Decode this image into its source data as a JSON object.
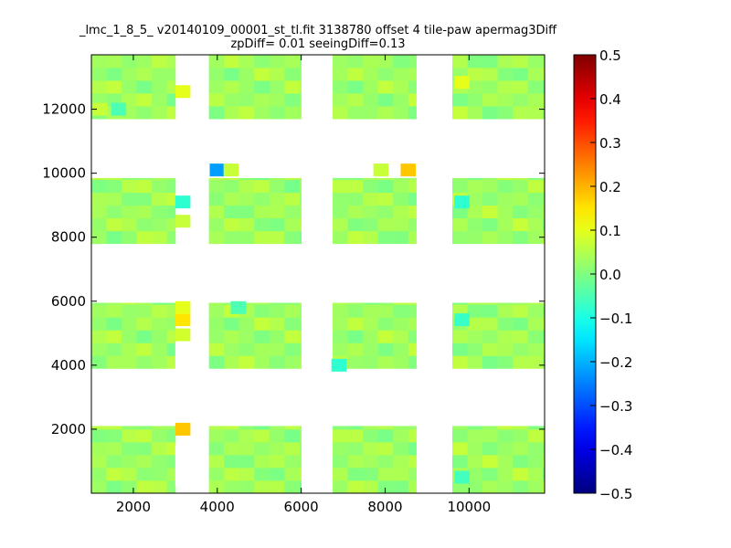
{
  "chart_data": {
    "type": "heatmap",
    "title": "_lmc_1_8_5_ v20140109_00001_st_tl.fit 3138780 offset 4 tile-paw apermag3Diff",
    "subtitle": "zpDiff= 0.01 seeingDiff=0.13",
    "xlim": [
      1000,
      11800
    ],
    "ylim": [
      0,
      13700
    ],
    "x_ticks": [
      2000,
      4000,
      6000,
      8000,
      10000
    ],
    "x_tick_labels": [
      "2000",
      "4000",
      "6000",
      "8000",
      "10000"
    ],
    "y_ticks": [
      2000,
      4000,
      6000,
      8000,
      10000,
      12000
    ],
    "y_tick_labels": [
      "2000",
      "4000",
      "6000",
      "8000",
      "10000",
      "12000"
    ],
    "colormap": "jet",
    "color_range": [
      -0.5,
      0.5
    ],
    "colorbar_ticks": [
      0.5,
      0.4,
      0.3,
      0.2,
      0.1,
      0.0,
      -0.1,
      -0.2,
      -0.3,
      -0.4,
      -0.5
    ],
    "colorbar_tick_labels": [
      "0.5",
      "0.4",
      "0.3",
      "0.2",
      "0.1",
      "0.0",
      "−0.1",
      "−0.2",
      "−0.3",
      "−0.4",
      "−0.5"
    ],
    "grid": false,
    "cell_size": [
      360,
      400
    ],
    "detector_base_value": 0.03,
    "detectors": [
      {
        "x0": 1000,
        "x1": 3000,
        "y0": 0,
        "y1": 2100
      },
      {
        "x0": 3800,
        "x1": 6000,
        "y0": 0,
        "y1": 2100
      },
      {
        "x0": 6750,
        "x1": 8750,
        "y0": 0,
        "y1": 2100
      },
      {
        "x0": 9600,
        "x1": 11800,
        "y0": 0,
        "y1": 2100
      },
      {
        "x0": 1000,
        "x1": 3000,
        "y0": 3900,
        "y1": 5950
      },
      {
        "x0": 3800,
        "x1": 6000,
        "y0": 3900,
        "y1": 5950
      },
      {
        "x0": 6750,
        "x1": 8750,
        "y0": 3900,
        "y1": 5950
      },
      {
        "x0": 9600,
        "x1": 11800,
        "y0": 3900,
        "y1": 5950
      },
      {
        "x0": 1000,
        "x1": 3000,
        "y0": 7800,
        "y1": 9850
      },
      {
        "x0": 3800,
        "x1": 6000,
        "y0": 7800,
        "y1": 9850
      },
      {
        "x0": 6750,
        "x1": 8750,
        "y0": 7800,
        "y1": 9850
      },
      {
        "x0": 9600,
        "x1": 11800,
        "y0": 7800,
        "y1": 9850
      },
      {
        "x0": 1000,
        "x1": 3000,
        "y0": 11700,
        "y1": 13700
      },
      {
        "x0": 3800,
        "x1": 6000,
        "y0": 11700,
        "y1": 13700
      },
      {
        "x0": 6750,
        "x1": 8750,
        "y0": 11700,
        "y1": 13700
      },
      {
        "x0": 9600,
        "x1": 11800,
        "y0": 11700,
        "y1": 13700
      }
    ],
    "outlier_cells": [
      {
        "x": 3180,
        "y": 2000,
        "value": 0.18
      },
      {
        "x": 3180,
        "y": 5420,
        "value": 0.15
      },
      {
        "x": 3180,
        "y": 4950,
        "value": 0.08
      },
      {
        "x": 3180,
        "y": 5800,
        "value": 0.1
      },
      {
        "x": 3180,
        "y": 12550,
        "value": 0.1
      },
      {
        "x": 3180,
        "y": 9100,
        "value": -0.08
      },
      {
        "x": 3180,
        "y": 8500,
        "value": 0.07
      },
      {
        "x": 4000,
        "y": 10100,
        "value": -0.22
      },
      {
        "x": 4330,
        "y": 10100,
        "value": 0.07
      },
      {
        "x": 7900,
        "y": 10100,
        "value": 0.07
      },
      {
        "x": 8550,
        "y": 10100,
        "value": 0.18
      },
      {
        "x": 9830,
        "y": 12840,
        "value": 0.1
      },
      {
        "x": 9830,
        "y": 9100,
        "value": -0.08
      },
      {
        "x": 9830,
        "y": 5420,
        "value": -0.07
      },
      {
        "x": 9830,
        "y": 500,
        "value": -0.06
      },
      {
        "x": 1200,
        "y": 12000,
        "value": 0.07
      },
      {
        "x": 1650,
        "y": 12000,
        "value": -0.05
      },
      {
        "x": 6900,
        "y": 4000,
        "value": -0.08
      },
      {
        "x": 4500,
        "y": 5800,
        "value": -0.05
      }
    ],
    "blank_regions": [
      {
        "x0": 3000,
        "x1": 3380,
        "y0": 200,
        "y1": 1500
      },
      {
        "x0": 3380,
        "x1": 3800,
        "y0": 1700,
        "y1": 2100
      },
      {
        "x0": 3000,
        "x1": 3800,
        "y0": 3900,
        "y1": 4700
      },
      {
        "x0": 3000,
        "x1": 3380,
        "y0": 5950,
        "y1": 5950
      },
      {
        "x0": 8750,
        "x1": 9250,
        "y0": 0,
        "y1": 2100
      },
      {
        "x0": 8750,
        "x1": 9600,
        "y0": 3900,
        "y1": 5950
      },
      {
        "x0": 8750,
        "x1": 9600,
        "y0": 7800,
        "y1": 9850
      },
      {
        "x0": 8750,
        "x1": 9600,
        "y0": 11700,
        "y1": 13700
      }
    ]
  }
}
